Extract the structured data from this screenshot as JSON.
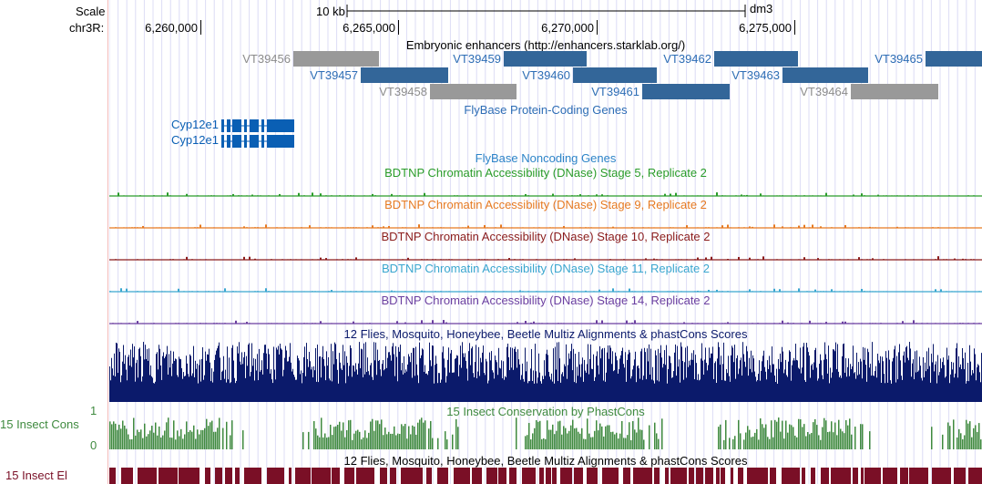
{
  "header": {
    "scale_label": "Scale",
    "chrom_label": "chr3R:",
    "scale_bar_label": "10 kb",
    "assembly": "dm3",
    "ruler_ticks": [
      "6,260,000",
      "6,265,000",
      "6,270,000",
      "6,275,000"
    ]
  },
  "tracks": {
    "enhancers": {
      "title": "Embryonic enhancers (http://enhancers.starklab.org/)",
      "items": [
        {
          "name": "VT39456",
          "color": "#999999"
        },
        {
          "name": "VT39457",
          "color": "#336699"
        },
        {
          "name": "VT39458",
          "color": "#999999"
        },
        {
          "name": "VT39459",
          "color": "#336699"
        },
        {
          "name": "VT39460",
          "color": "#336699"
        },
        {
          "name": "VT39461",
          "color": "#336699"
        },
        {
          "name": "VT39462",
          "color": "#336699"
        },
        {
          "name": "VT39463",
          "color": "#336699"
        },
        {
          "name": "VT39464",
          "color": "#999999"
        },
        {
          "name": "VT39465",
          "color": "#336699"
        }
      ]
    },
    "flybase_coding": {
      "title": "FlyBase Protein-Coding Genes",
      "genes": [
        "Cyp12e1",
        "Cyp12e1"
      ],
      "color": "#0a5fb4"
    },
    "flybase_noncoding": {
      "title": "FlyBase Noncoding Genes",
      "color": "#2d84c8"
    },
    "dnase": [
      {
        "title": "BDTNP Chromatin Accessibility (DNase) Stage 5, Replicate 2",
        "color": "#2a9c2a"
      },
      {
        "title": "BDTNP Chromatin Accessibility (DNase) Stage 9, Replicate 2",
        "color": "#e67a22"
      },
      {
        "title": "BDTNP Chromatin Accessibility (DNase) Stage 10, Replicate 2",
        "color": "#8b1c1c"
      },
      {
        "title": "BDTNP Chromatin Accessibility (DNase) Stage 11, Replicate 2",
        "color": "#3aa6cf"
      },
      {
        "title": "BDTNP Chromatin Accessibility (DNase) Stage 14, Replicate 2",
        "color": "#6b3fa0"
      }
    ],
    "multiz": {
      "title": "12 Flies, Mosquito, Honeybee, Beetle Multiz Alignments & phastCons Scores",
      "color": "#0b1a6b"
    },
    "phastcons": {
      "title": "15 Insect Conservation by PhastCons",
      "side_label": "15 Insect Cons",
      "axis_max": "1",
      "axis_min": "0",
      "color": "#3f8a3f"
    },
    "elements": {
      "title": "12 Flies, Mosquito, Honeybee, Beetle Multiz Alignments & phastCons Scores",
      "side_label": "15 Insect El",
      "color": "#7a0f26"
    }
  }
}
